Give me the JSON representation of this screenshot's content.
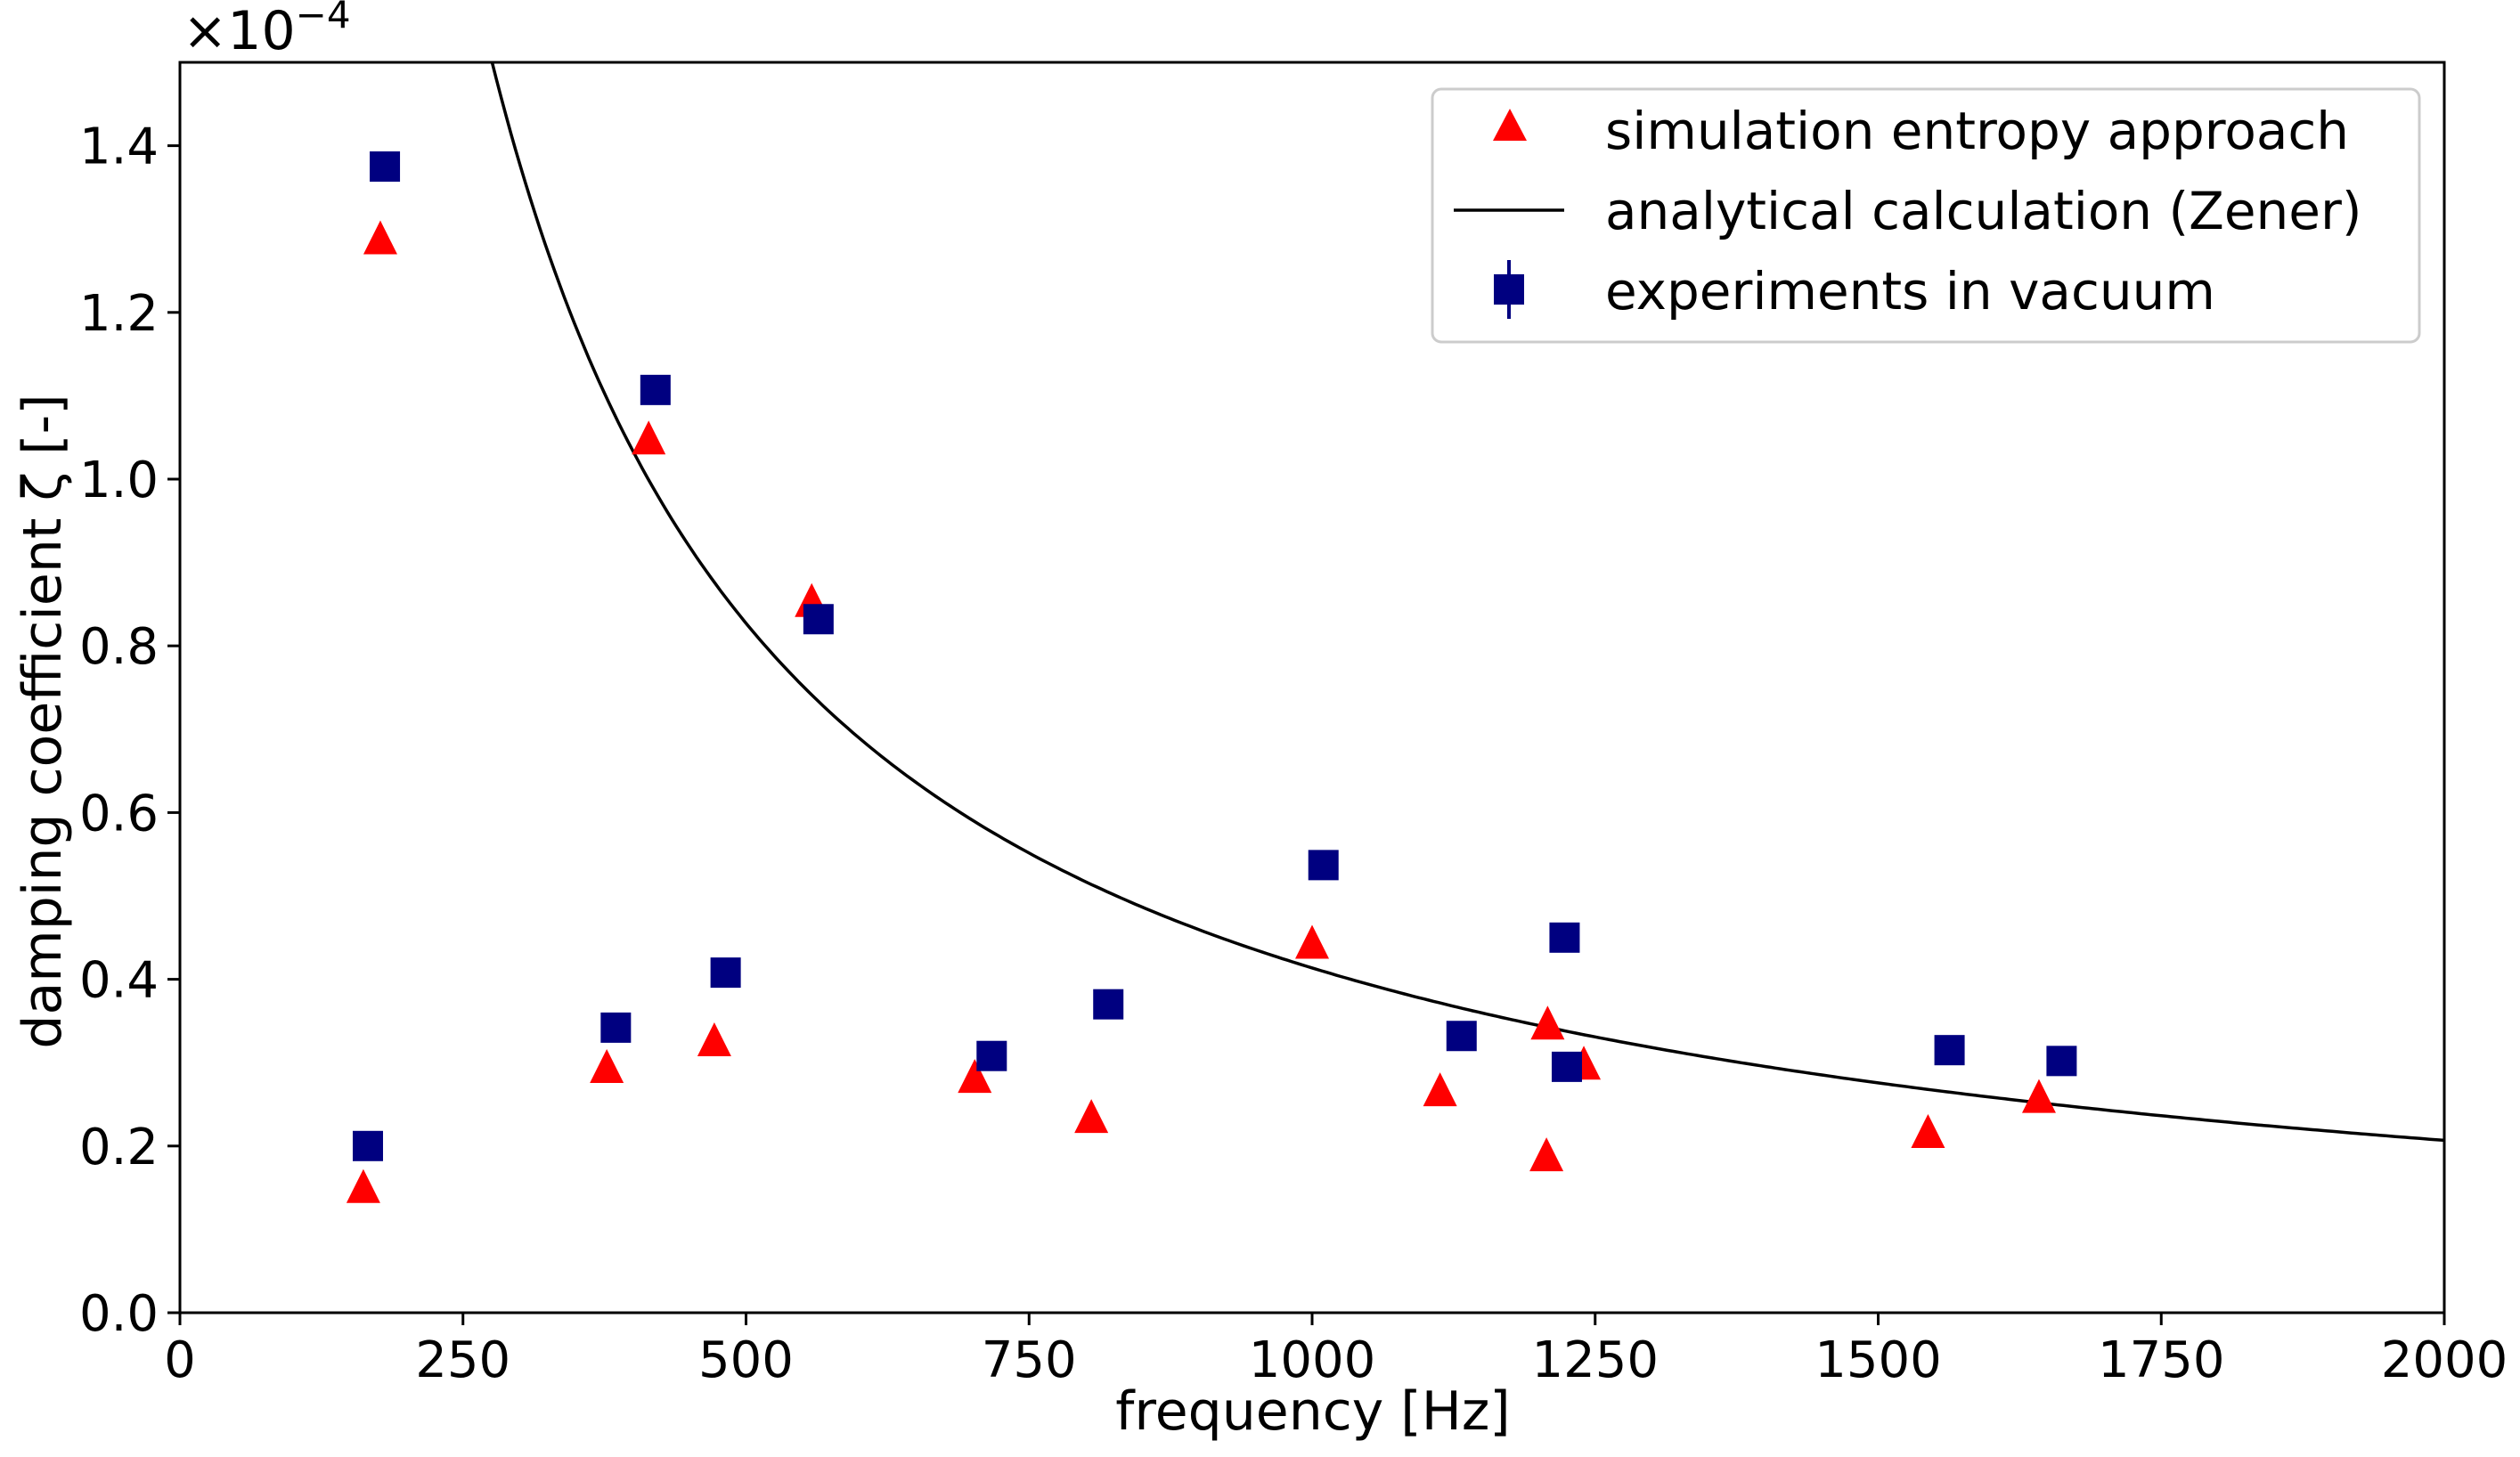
{
  "chart_data": {
    "type": "scatter",
    "xlabel": "frequency [Hz]",
    "ylabel": "damping coefficient ζ [-]",
    "y_scale_label": "×10",
    "y_scale_exponent": "−4",
    "xlim": [
      0,
      2000
    ],
    "ylim": [
      0.0,
      1.5
    ],
    "x_ticks": [
      0,
      250,
      500,
      750,
      1000,
      1250,
      1500,
      1750,
      2000
    ],
    "x_tick_labels": [
      "0",
      "250",
      "500",
      "750",
      "1000",
      "1250",
      "1500",
      "1750",
      "2000"
    ],
    "y_ticks": [
      0.0,
      0.2,
      0.4,
      0.6,
      0.8,
      1.0,
      1.2,
      1.4
    ],
    "y_tick_labels": [
      "0.0",
      "0.2",
      "0.4",
      "0.6",
      "0.8",
      "1.0",
      "1.2",
      "1.4"
    ],
    "legend_position": "top-right",
    "series": [
      {
        "name": "simulation entropy approach",
        "marker": "triangle",
        "color": "#ff0000",
        "points": [
          [
            162,
            0.152
          ],
          [
            177,
            1.29
          ],
          [
            377,
            0.296
          ],
          [
            414,
            1.05
          ],
          [
            472,
            0.328
          ],
          [
            558,
            0.855
          ],
          [
            702,
            0.284
          ],
          [
            805,
            0.236
          ],
          [
            1000,
            0.445
          ],
          [
            1113,
            0.268
          ],
          [
            1207,
            0.19
          ],
          [
            1208,
            0.348
          ],
          [
            1240,
            0.3
          ],
          [
            1544,
            0.218
          ],
          [
            1642,
            0.26
          ]
        ]
      },
      {
        "name": "analytical calculation (Zener)",
        "marker": "line",
        "color": "#000000",
        "formula": "zeta = 413.6 / f",
        "x_range": [
          275,
          2000
        ]
      },
      {
        "name": "experiments in vacuum",
        "marker": "square",
        "color": "#000080",
        "points": [
          [
            166,
            0.2
          ],
          [
            181,
            1.375
          ],
          [
            385,
            0.342
          ],
          [
            420,
            1.107
          ],
          [
            482,
            0.408
          ],
          [
            564,
            0.832
          ],
          [
            717,
            0.308
          ],
          [
            820,
            0.37
          ],
          [
            1010,
            0.537
          ],
          [
            1132,
            0.332
          ],
          [
            1223,
            0.45
          ],
          [
            1225,
            0.295
          ],
          [
            1563,
            0.315
          ],
          [
            1662,
            0.302
          ]
        ]
      }
    ]
  }
}
